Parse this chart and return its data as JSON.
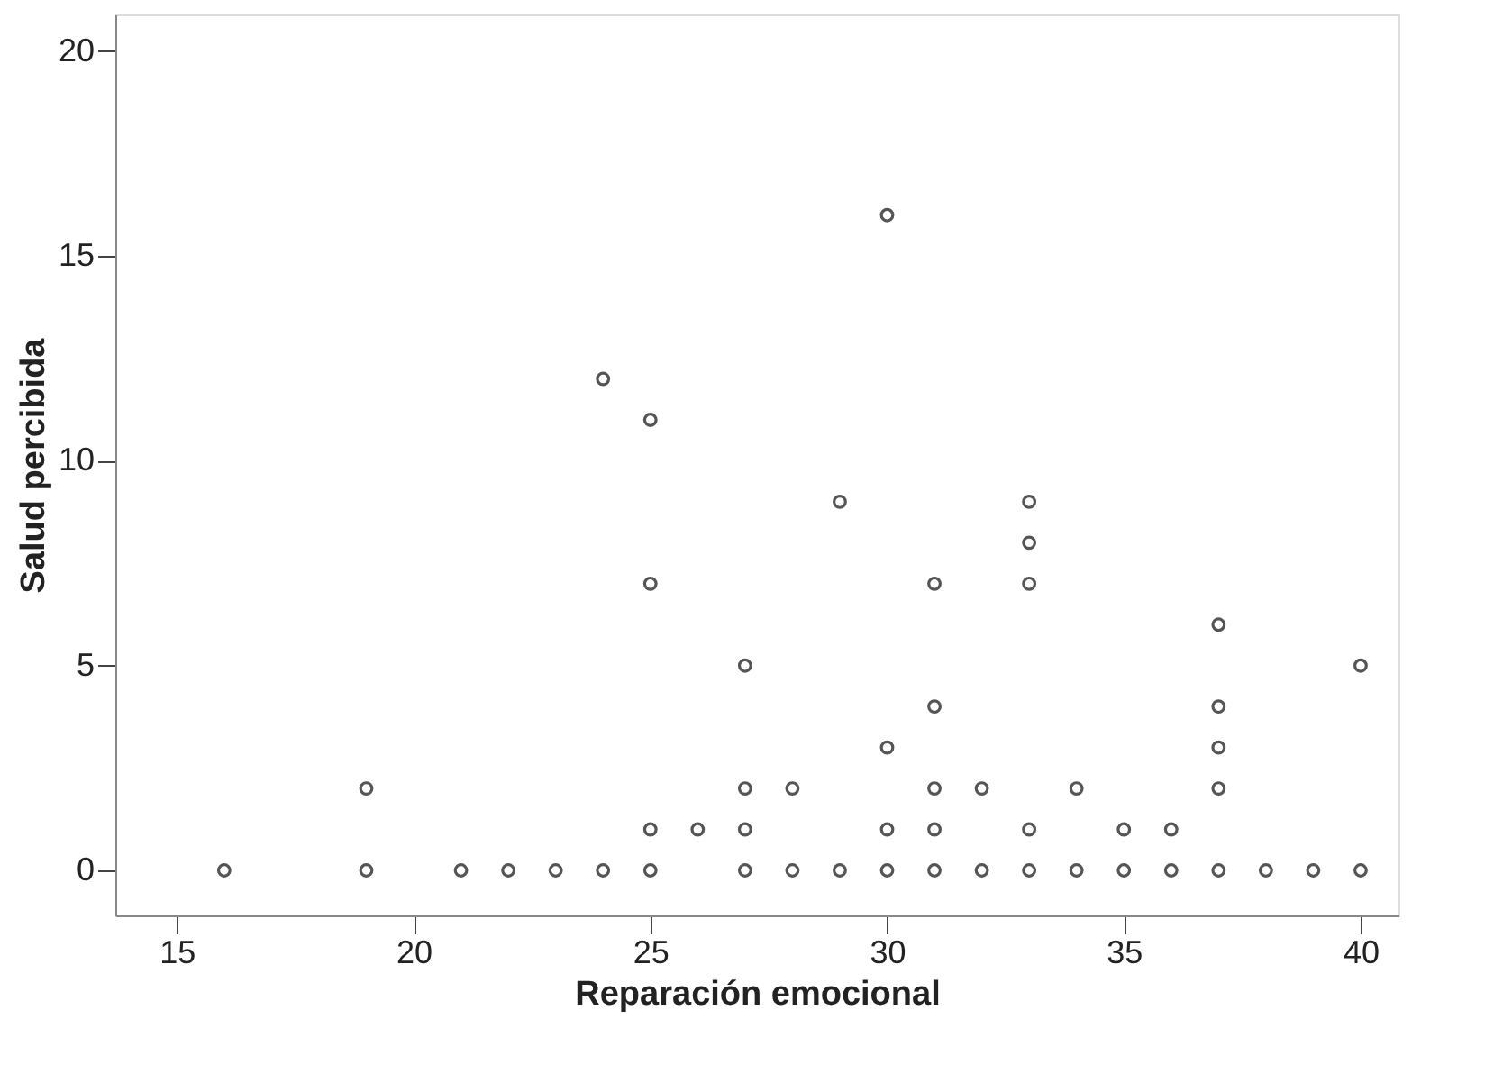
{
  "chart_data": {
    "type": "scatter",
    "xlabel": "Reparación emocional",
    "ylabel": "Salud percibida",
    "x": [
      16,
      19,
      21,
      22,
      23,
      24,
      25,
      27,
      28,
      29,
      30,
      31,
      32,
      33,
      34,
      35,
      36,
      37,
      38,
      39,
      40,
      25,
      26,
      27,
      30,
      31,
      33,
      35,
      36,
      19,
      27,
      28,
      31,
      32,
      34,
      37,
      30,
      37,
      31,
      37,
      27,
      40,
      37,
      25,
      31,
      33,
      33,
      29,
      33,
      25,
      24,
      30
    ],
    "values": [
      0,
      0,
      0,
      0,
      0,
      0,
      0,
      0,
      0,
      0,
      0,
      0,
      0,
      0,
      0,
      0,
      0,
      0,
      0,
      0,
      0,
      1,
      1,
      1,
      1,
      1,
      1,
      1,
      1,
      2,
      2,
      2,
      2,
      2,
      2,
      2,
      3,
      3,
      4,
      4,
      5,
      5,
      6,
      7,
      7,
      7,
      8,
      9,
      9,
      11,
      12,
      16
    ],
    "color": "#555555",
    "marker": "circle",
    "grid": false,
    "xlim": [
      13.7,
      40.8
    ],
    "ylim": [
      -1.1,
      20.9
    ],
    "xticks": [
      15,
      20,
      25,
      30,
      35,
      40
    ],
    "yticks": [
      0,
      5,
      10,
      15,
      20
    ]
  }
}
